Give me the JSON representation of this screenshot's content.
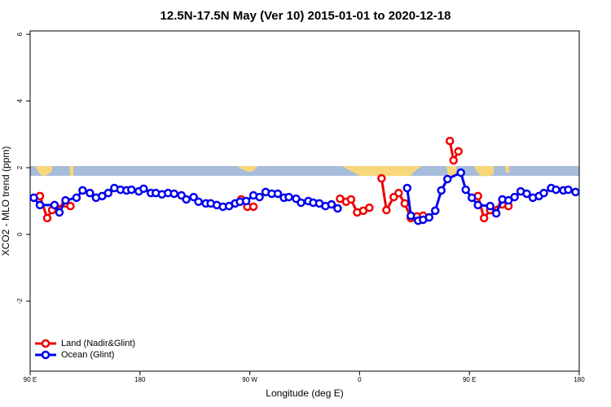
{
  "chart_data": {
    "type": "line",
    "title": "12.5N-17.5N May (Ver 10)   2015-01-01 to 2020-12-18",
    "x_label": "Longitude (deg E)",
    "y_label": "XCO2 - MLO trend (ppm)",
    "xlim": [
      90,
      540
    ],
    "xticks": [
      {
        "value": 90,
        "label": "90 E"
      },
      {
        "value": 180,
        "label": "180"
      },
      {
        "value": 270,
        "label": "90 W"
      },
      {
        "value": 360,
        "label": "0"
      },
      {
        "value": 450,
        "label": "90 E"
      },
      {
        "value": 540,
        "label": "180"
      }
    ],
    "ylim": [
      -4.1,
      6.1
    ],
    "yticks": [
      -2,
      0,
      2,
      4,
      6
    ],
    "legend": "bottom-left",
    "series": [
      {
        "name": "Land (Nadir&Glint)",
        "color": "#ee0000",
        "x": [
          98,
          104,
          108,
          119,
          123,
          null,
          263,
          268,
          273,
          null,
          344,
          349,
          353,
          358,
          363,
          368,
          null,
          378,
          382,
          388,
          392,
          397,
          402,
          407,
          412,
          null,
          434,
          437,
          441,
          null,
          457,
          462,
          467,
          477,
          482
        ],
        "values": [
          1.15,
          0.49,
          0.73,
          0.93,
          0.85,
          null,
          1.05,
          0.83,
          0.83,
          null,
          1.07,
          0.98,
          1.05,
          0.66,
          0.71,
          0.8,
          null,
          1.68,
          0.73,
          1.12,
          1.24,
          0.93,
          0.49,
          0.54,
          0.56,
          null,
          2.8,
          2.22,
          2.49,
          null,
          1.15,
          0.49,
          0.73,
          0.9,
          0.85
        ]
      },
      {
        "name": "Ocean (Glint)",
        "color": "#0000ee",
        "x": [
          93,
          98,
          110,
          114,
          119,
          128,
          133,
          139,
          144,
          149,
          154,
          159,
          164,
          169,
          173,
          179,
          183,
          189,
          193,
          198,
          203,
          208,
          214,
          218,
          224,
          228,
          234,
          238,
          243,
          248,
          253,
          258,
          262,
          267,
          273,
          278,
          283,
          288,
          293,
          298,
          302,
          308,
          312,
          318,
          322,
          327,
          332,
          337,
          342,
          null,
          399,
          402,
          408,
          412,
          417,
          422,
          427,
          432,
          443,
          447,
          452,
          457,
          467,
          472,
          477,
          482,
          487,
          492,
          497,
          502,
          507,
          511,
          517,
          521,
          527,
          531,
          537
        ],
        "values": [
          1.1,
          0.88,
          0.88,
          0.66,
          1.02,
          1.1,
          1.32,
          1.24,
          1.1,
          1.15,
          1.24,
          1.39,
          1.34,
          1.32,
          1.34,
          1.29,
          1.37,
          1.24,
          1.24,
          1.2,
          1.24,
          1.22,
          1.17,
          1.05,
          1.12,
          0.98,
          0.93,
          0.93,
          0.88,
          0.83,
          0.85,
          0.93,
          0.98,
          1.0,
          1.17,
          1.12,
          1.27,
          1.22,
          1.22,
          1.1,
          1.12,
          1.07,
          0.95,
          1.0,
          0.95,
          0.93,
          0.85,
          0.9,
          0.78,
          null,
          1.39,
          0.56,
          0.41,
          0.44,
          0.51,
          0.71,
          1.32,
          1.66,
          1.85,
          1.34,
          1.1,
          0.88,
          0.85,
          0.63,
          1.05,
          1.02,
          1.12,
          1.29,
          1.22,
          1.1,
          1.15,
          1.24,
          1.39,
          1.34,
          1.32,
          1.34,
          1.27
        ]
      }
    ]
  }
}
